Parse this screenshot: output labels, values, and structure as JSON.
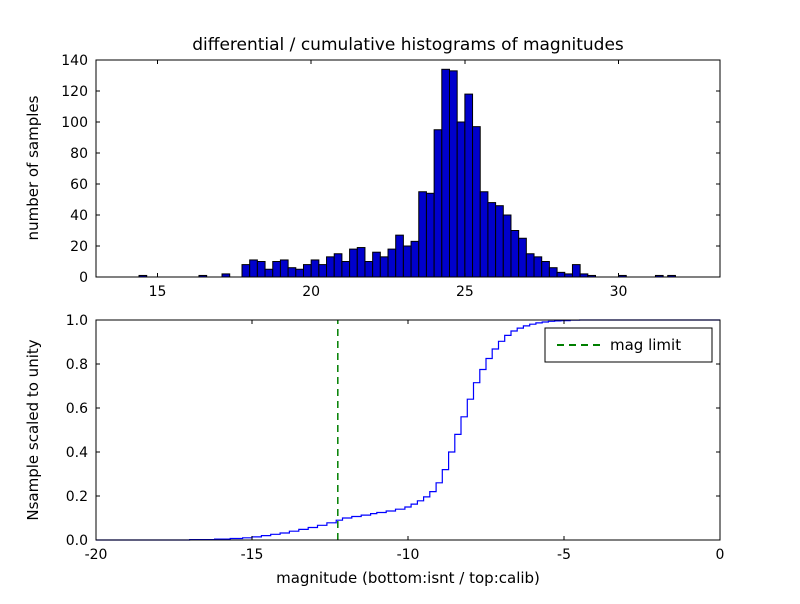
{
  "chart_data": [
    {
      "type": "bar",
      "title": "differential / cumulative histograms of magnitudes",
      "xlabel": "",
      "ylabel": "number of samples",
      "xlim": [
        13.0,
        33.3
      ],
      "ylim": [
        0,
        140
      ],
      "xticks": [
        "15",
        "20",
        "25",
        "30"
      ],
      "yticks": [
        "0",
        "20",
        "40",
        "60",
        "80",
        "100",
        "120",
        "140"
      ],
      "grid": false,
      "bar_color": "#0000cc",
      "bar_edge_color": "#000000",
      "bin_width": 0.25,
      "bars": [
        [
          14.4,
          1
        ],
        [
          16.35,
          1
        ],
        [
          17.1,
          2
        ],
        [
          17.75,
          8
        ],
        [
          18.0,
          11
        ],
        [
          18.25,
          10
        ],
        [
          18.5,
          5
        ],
        [
          18.75,
          10
        ],
        [
          19.0,
          11
        ],
        [
          19.25,
          6
        ],
        [
          19.5,
          5
        ],
        [
          19.75,
          8
        ],
        [
          20.0,
          11
        ],
        [
          20.25,
          8
        ],
        [
          20.5,
          13
        ],
        [
          20.75,
          15
        ],
        [
          21.0,
          10
        ],
        [
          21.25,
          18
        ],
        [
          21.5,
          19
        ],
        [
          21.75,
          10
        ],
        [
          22.0,
          16
        ],
        [
          22.25,
          13
        ],
        [
          22.5,
          18
        ],
        [
          22.75,
          27
        ],
        [
          23.0,
          20
        ],
        [
          23.25,
          23
        ],
        [
          23.5,
          55
        ],
        [
          23.75,
          54
        ],
        [
          24.0,
          95
        ],
        [
          24.25,
          134
        ],
        [
          24.5,
          133
        ],
        [
          24.75,
          100
        ],
        [
          25.0,
          118
        ],
        [
          25.25,
          97
        ],
        [
          25.5,
          55
        ],
        [
          25.75,
          48
        ],
        [
          26.0,
          46
        ],
        [
          26.25,
          40
        ],
        [
          26.5,
          30
        ],
        [
          26.75,
          25
        ],
        [
          27.0,
          15
        ],
        [
          27.25,
          13
        ],
        [
          27.5,
          10
        ],
        [
          27.75,
          6
        ],
        [
          28.0,
          3
        ],
        [
          28.25,
          2
        ],
        [
          28.5,
          8
        ],
        [
          28.75,
          2
        ],
        [
          29.0,
          1
        ],
        [
          30.0,
          1
        ],
        [
          31.2,
          1
        ],
        [
          31.6,
          1
        ]
      ]
    },
    {
      "type": "line",
      "style": "step",
      "xlabel": "magnitude (bottom:isnt / top:calib)",
      "ylabel": "Nsample scaled to unity",
      "xlim": [
        -20,
        0
      ],
      "ylim": [
        0,
        1.0
      ],
      "xticks": [
        "-20",
        "-15",
        "-10",
        "-5",
        "0"
      ],
      "yticks": [
        "0.0",
        "0.2",
        "0.4",
        "0.6",
        "0.8",
        "1.0"
      ],
      "grid": false,
      "line_color": "#0000ff",
      "mag_limit_x": -12.25,
      "mag_limit_color": "#007f00",
      "legend_label": "mag limit",
      "legend_position": "upper right",
      "points": [
        [
          -20,
          0
        ],
        [
          -17,
          0.002
        ],
        [
          -16.2,
          0.004
        ],
        [
          -15.7,
          0.007
        ],
        [
          -15.3,
          0.01
        ],
        [
          -15,
          0.014
        ],
        [
          -14.7,
          0.02
        ],
        [
          -14.4,
          0.026
        ],
        [
          -14.1,
          0.032
        ],
        [
          -13.8,
          0.04
        ],
        [
          -13.5,
          0.048
        ],
        [
          -13.2,
          0.057
        ],
        [
          -12.9,
          0.067
        ],
        [
          -12.6,
          0.078
        ],
        [
          -12.3,
          0.09
        ],
        [
          -12.1,
          0.1
        ],
        [
          -11.8,
          0.107
        ],
        [
          -11.5,
          0.113
        ],
        [
          -11.2,
          0.12
        ],
        [
          -11,
          0.125
        ],
        [
          -10.7,
          0.132
        ],
        [
          -10.4,
          0.14
        ],
        [
          -10.1,
          0.15
        ],
        [
          -9.9,
          0.163
        ],
        [
          -9.7,
          0.178
        ],
        [
          -9.5,
          0.196
        ],
        [
          -9.3,
          0.22
        ],
        [
          -9.1,
          0.26
        ],
        [
          -8.9,
          0.32
        ],
        [
          -8.7,
          0.4
        ],
        [
          -8.5,
          0.48
        ],
        [
          -8.3,
          0.56
        ],
        [
          -8.1,
          0.64
        ],
        [
          -7.9,
          0.715
        ],
        [
          -7.7,
          0.775
        ],
        [
          -7.5,
          0.825
        ],
        [
          -7.3,
          0.868
        ],
        [
          -7.1,
          0.903
        ],
        [
          -6.9,
          0.93
        ],
        [
          -6.7,
          0.95
        ],
        [
          -6.5,
          0.963
        ],
        [
          -6.3,
          0.973
        ],
        [
          -6.1,
          0.981
        ],
        [
          -5.9,
          0.987
        ],
        [
          -5.7,
          0.991
        ],
        [
          -5.5,
          0.994
        ],
        [
          -5.3,
          0.996
        ],
        [
          -5.1,
          0.997
        ],
        [
          -4.8,
          0.999
        ],
        [
          -4.5,
          1.0
        ],
        [
          0,
          1.0
        ]
      ]
    }
  ]
}
